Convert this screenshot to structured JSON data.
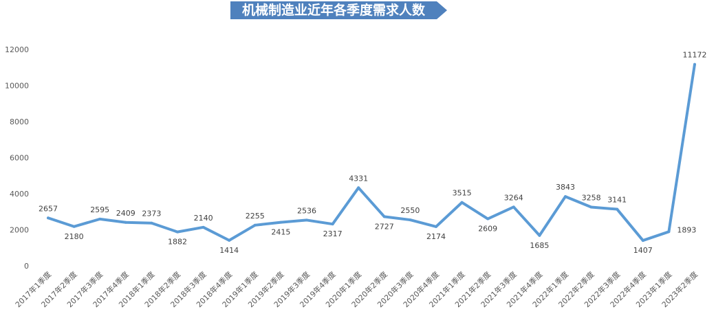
{
  "chart_data": {
    "type": "line",
    "title": "机械制造业近年各季度需求人数",
    "xlabel": "",
    "ylabel": "",
    "ylim": [
      0,
      12000
    ],
    "yticks": [
      0,
      2000,
      4000,
      6000,
      8000,
      10000,
      12000
    ],
    "grid": false,
    "legend": "none",
    "line_color": "#5b9bd5",
    "title_banner_color": "#4f81bd",
    "categories": [
      "2017年1季度",
      "2017年2季度",
      "2017年3季度",
      "2017年4季度",
      "2018年1季度",
      "2018年2季度",
      "2018年3季度",
      "2018年4季度",
      "2019年1季度",
      "2019年2季度",
      "2019年3季度",
      "2019年4季度",
      "2020年1季度",
      "2020年2季度",
      "2020年3季度",
      "2020年4季度",
      "2021年1季度",
      "2021年2季度",
      "2021年3季度",
      "2021年4季度",
      "2022年1季度",
      "2022年2季度",
      "2022年3季度",
      "2022年4季度",
      "2023年1季度",
      "2023年2季度"
    ],
    "values": [
      2657,
      2180,
      2595,
      2409,
      2373,
      1882,
      2140,
      1414,
      2255,
      2415,
      2536,
      2317,
      4331,
      2727,
      2550,
      2174,
      3515,
      2609,
      3264,
      1685,
      3843,
      3258,
      3141,
      1407,
      1893,
      11172
    ]
  }
}
